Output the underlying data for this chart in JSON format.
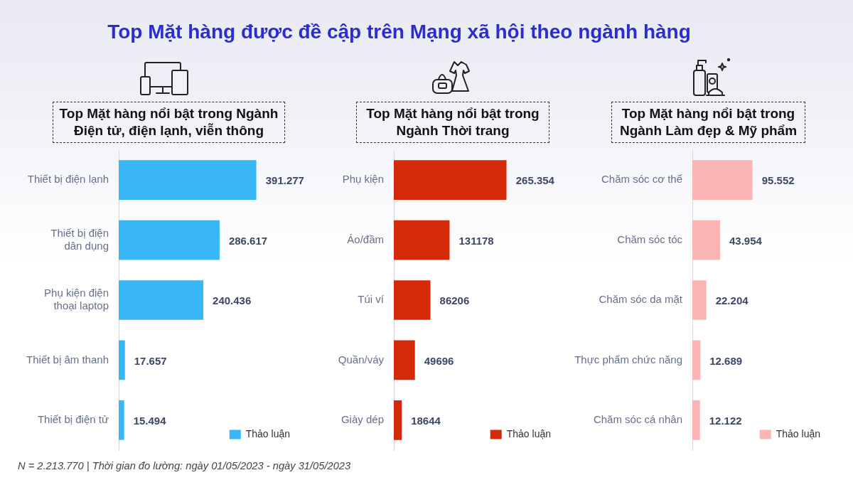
{
  "chart_data": [
    {
      "type": "other",
      "title": "Top Mặt hàng được đề cập trên Mạng xã hội theo ngành hàng",
      "annotations": [
        "N = 2.213.770 | Thời gian đo lường: ngày 01/05/2023 - ngày 31/05/2023"
      ]
    },
    {
      "type": "bar",
      "orientation": "horizontal",
      "title": "Top Mặt hàng nổi bật trong Ngành Điện tử, điện lạnh, viễn thông",
      "categories": [
        "Thiết bị điện lạnh",
        "Thiết bị điện dân dụng",
        "Phụ kiện điện thoại laptop",
        "Thiết bị âm thanh",
        "Thiết bị điện tử"
      ],
      "series": [
        {
          "name": "Thảo luận",
          "color": "#38b6f5",
          "values": [
            391277,
            286617,
            240436,
            17657,
            15494
          ],
          "value_labels": [
            "391.277",
            "286.617",
            "240.436",
            "17.657",
            "15.494"
          ]
        }
      ],
      "legend": "bottom right",
      "grid": false,
      "tick_labels": "y"
    },
    {
      "type": "bar",
      "orientation": "horizontal",
      "title": "Top Mặt hàng nổi bật trong Ngành Thời trang",
      "categories": [
        "Phụ kiện",
        "Áo/đầm",
        "Túi ví",
        "Quần/váy",
        "Giày dép"
      ],
      "series": [
        {
          "name": "Thảo luận",
          "color": "#d42a0a",
          "values": [
            265354,
            131178,
            86206,
            49696,
            18644
          ],
          "value_labels": [
            "265.354",
            "131178",
            "86206",
            "49696",
            "18644"
          ]
        }
      ],
      "legend": "bottom right",
      "grid": false,
      "tick_labels": "y"
    },
    {
      "type": "bar",
      "orientation": "horizontal",
      "title": "Top Mặt hàng nổi bật trong Ngành Làm đẹp & Mỹ phẩm",
      "categories": [
        "Chăm sóc cơ thể",
        "Chăm sóc tóc",
        "Chăm sóc da mặt",
        "Thực phẩm chức năng",
        "Chăm sóc cá nhân"
      ],
      "series": [
        {
          "name": "Thảo luận",
          "color": "#fbb4b4",
          "values": [
            95552,
            43954,
            22204,
            12689,
            12122
          ],
          "value_labels": [
            "95.552",
            "43.954",
            "22.204",
            "12.689",
            "12.122"
          ]
        }
      ],
      "legend": "bottom right",
      "grid": false,
      "tick_labels": "y"
    }
  ]
}
